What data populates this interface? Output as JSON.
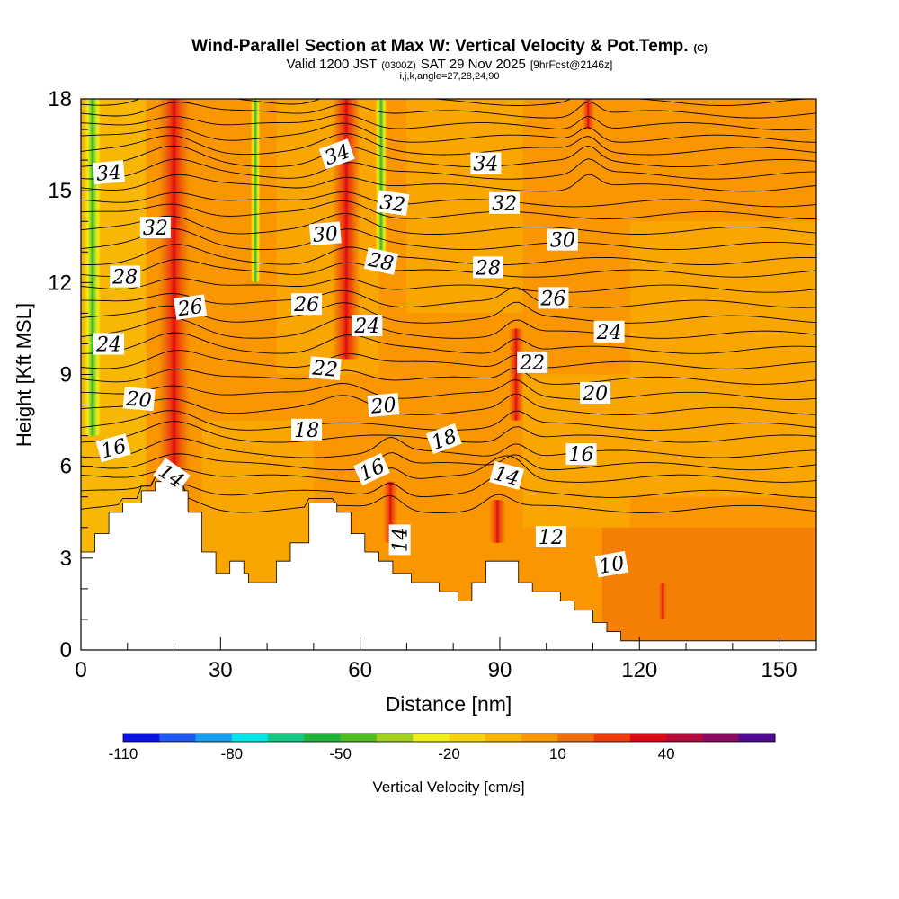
{
  "header": {
    "title": "Wind-Parallel Section at Max W: Vertical Velocity & Pot.Temp.",
    "copyright": "(C)",
    "valid_prefix": "Valid 1200 JST",
    "valid_utc": "(0300Z)",
    "valid_date": "SAT 29 Nov 2025",
    "forecast": "[9hrFcst@2146z]",
    "grid_info": "i,j,k,angle=27,28,24,90"
  },
  "chart_data": {
    "type": "heatmap",
    "title": "Wind-Parallel Section at Max W: Vertical Velocity & Pot.Temp.",
    "xlabel": "Distance [nm]",
    "ylabel": "Height [Kft MSL]",
    "xlim": [
      0,
      158
    ],
    "ylim": [
      0,
      18
    ],
    "x_ticks": [
      0,
      30,
      60,
      90,
      120,
      150
    ],
    "y_ticks": [
      0,
      3,
      6,
      9,
      12,
      15,
      18
    ],
    "x_tick_labels": [
      "0",
      "30",
      "60",
      "90",
      "120",
      "150"
    ],
    "y_tick_labels": [
      "0",
      "3",
      "6",
      "9",
      "12",
      "15",
      "18"
    ],
    "colorbar": {
      "label": "Vertical Velocity [cm/s]",
      "min": -110,
      "step": 10,
      "colors": [
        "#0a14e6",
        "#1e5af0",
        "#14a0f0",
        "#00e6e6",
        "#14c882",
        "#1eb43c",
        "#50be1e",
        "#a0d21e",
        "#f0f014",
        "#f5d20a",
        "#fab400",
        "#fa9600",
        "#f06e0a",
        "#f03c0a",
        "#dc0a14",
        "#b40a3c",
        "#8c0a64",
        "#500a96"
      ],
      "tick_labels": [
        "-110",
        "-80",
        "-50",
        "-20",
        "10",
        "40"
      ],
      "tick_values": [
        -110,
        -80,
        -50,
        -20,
        10,
        40
      ]
    },
    "terrain_kft": [
      [
        0,
        3.2
      ],
      [
        3,
        3.2
      ],
      [
        3,
        3.8
      ],
      [
        6,
        3.8
      ],
      [
        6,
        4.5
      ],
      [
        9,
        4.5
      ],
      [
        9,
        4.8
      ],
      [
        13,
        4.8
      ],
      [
        13,
        5.2
      ],
      [
        16,
        5.2
      ],
      [
        16,
        5.5
      ],
      [
        22,
        5.5
      ],
      [
        22,
        5.2
      ],
      [
        23,
        5.2
      ],
      [
        23,
        4.5
      ],
      [
        26,
        4.5
      ],
      [
        26,
        3.2
      ],
      [
        29,
        3.2
      ],
      [
        29,
        2.5
      ],
      [
        32,
        2.5
      ],
      [
        32,
        2.9
      ],
      [
        35,
        2.9
      ],
      [
        35,
        2.5
      ],
      [
        36,
        2.5
      ],
      [
        36,
        2.2
      ],
      [
        42,
        2.2
      ],
      [
        42,
        2.9
      ],
      [
        45,
        2.9
      ],
      [
        45,
        3.5
      ],
      [
        49,
        3.5
      ],
      [
        49,
        4.8
      ],
      [
        55,
        4.8
      ],
      [
        55,
        4.5
      ],
      [
        58,
        4.5
      ],
      [
        58,
        3.8
      ],
      [
        61,
        3.8
      ],
      [
        61,
        3.2
      ],
      [
        64,
        3.2
      ],
      [
        64,
        2.9
      ],
      [
        67,
        2.9
      ],
      [
        67,
        2.5
      ],
      [
        71,
        2.5
      ],
      [
        71,
        2.2
      ],
      [
        77,
        2.2
      ],
      [
        77,
        1.9
      ],
      [
        81,
        1.9
      ],
      [
        81,
        1.6
      ],
      [
        84,
        1.6
      ],
      [
        84,
        2.2
      ],
      [
        87,
        2.2
      ],
      [
        87,
        2.9
      ],
      [
        94,
        2.9
      ],
      [
        94,
        2.2
      ],
      [
        97,
        2.2
      ],
      [
        97,
        1.9
      ],
      [
        103,
        1.9
      ],
      [
        103,
        1.6
      ],
      [
        106,
        1.6
      ],
      [
        106,
        1.3
      ],
      [
        110,
        1.3
      ],
      [
        110,
        0.9
      ],
      [
        113,
        0.9
      ],
      [
        113,
        0.6
      ],
      [
        116,
        0.6
      ],
      [
        116,
        0.3
      ],
      [
        158,
        0.3
      ]
    ],
    "theta_line_heights_kft": [
      4.6,
      5.1,
      5.6,
      6.0,
      6.4,
      6.9,
      7.3,
      7.8,
      8.3,
      8.8,
      9.3,
      9.8,
      10.3,
      10.8,
      11.3,
      11.8,
      12.3,
      12.7,
      13.2,
      13.7,
      14.2,
      14.6,
      15.1,
      15.5,
      15.9,
      16.3,
      16.7,
      17.1,
      17.5,
      17.9
    ],
    "updrafts": [
      {
        "x": 20,
        "y_bottom": 4.5,
        "y_top": 18,
        "width": 3.4,
        "w": 40
      },
      {
        "x": 57,
        "y_bottom": 9.5,
        "y_top": 18,
        "width": 3.0,
        "w": 35
      },
      {
        "x": 66.5,
        "y_bottom": 3.5,
        "y_top": 5.5,
        "width": 1.6,
        "w": 35
      },
      {
        "x": 89.5,
        "y_bottom": 3.5,
        "y_top": 4.9,
        "width": 1.8,
        "w": 30
      },
      {
        "x": 93.5,
        "y_bottom": 7.5,
        "y_top": 10.5,
        "width": 1.6,
        "w": 25
      },
      {
        "x": 109,
        "y_bottom": 17,
        "y_top": 18,
        "width": 1.4,
        "w": 25
      },
      {
        "x": 125,
        "y_bottom": 1.0,
        "y_top": 2.2,
        "width": 1.0,
        "w": 30
      }
    ],
    "downdrafts": [
      {
        "x": 2.5,
        "y_bottom": 7.0,
        "y_top": 18,
        "width": 1.8,
        "w": -55
      },
      {
        "x": 64.5,
        "y_bottom": 13.0,
        "y_top": 18,
        "width": 1.2,
        "w": -35
      },
      {
        "x": 37.5,
        "y_bottom": 12.0,
        "y_top": 18,
        "width": 1.0,
        "w": -20
      }
    ],
    "theta_labels": [
      {
        "text": "34",
        "x": 6,
        "y": 15.6,
        "angle": -5
      },
      {
        "text": "32",
        "x": 16,
        "y": 13.8,
        "angle": 0
      },
      {
        "text": "28",
        "x": 9.5,
        "y": 12.2,
        "angle": 0
      },
      {
        "text": "24",
        "x": 6,
        "y": 10.0,
        "angle": 0
      },
      {
        "text": "20",
        "x": 12.5,
        "y": 8.2,
        "angle": 5
      },
      {
        "text": "16",
        "x": 7,
        "y": 6.6,
        "angle": -15
      },
      {
        "text": "14",
        "x": 19.5,
        "y": 5.7,
        "angle": 35
      },
      {
        "text": "26",
        "x": 23.5,
        "y": 11.2,
        "angle": -8
      },
      {
        "text": "34",
        "x": 55,
        "y": 16.2,
        "angle": -20
      },
      {
        "text": "30",
        "x": 52.5,
        "y": 13.6,
        "angle": -5
      },
      {
        "text": "26",
        "x": 48.5,
        "y": 11.3,
        "angle": 0
      },
      {
        "text": "22",
        "x": 52.5,
        "y": 9.2,
        "angle": 5
      },
      {
        "text": "18",
        "x": 48.5,
        "y": 7.2,
        "angle": 0
      },
      {
        "text": "32",
        "x": 67,
        "y": 14.6,
        "angle": 8
      },
      {
        "text": "28",
        "x": 64.5,
        "y": 12.7,
        "angle": 12
      },
      {
        "text": "24",
        "x": 61.5,
        "y": 10.6,
        "angle": 0
      },
      {
        "text": "20",
        "x": 65,
        "y": 8.0,
        "angle": -5
      },
      {
        "text": "16",
        "x": 62.5,
        "y": 5.9,
        "angle": -25
      },
      {
        "text": "14",
        "x": 68.5,
        "y": 3.6,
        "angle": -90
      },
      {
        "text": "18",
        "x": 78,
        "y": 6.9,
        "angle": -20
      },
      {
        "text": "34",
        "x": 87,
        "y": 15.9,
        "angle": 0
      },
      {
        "text": "32",
        "x": 91,
        "y": 14.6,
        "angle": 0
      },
      {
        "text": "28",
        "x": 87.5,
        "y": 12.5,
        "angle": 0
      },
      {
        "text": "14",
        "x": 91.5,
        "y": 5.7,
        "angle": 15
      },
      {
        "text": "22",
        "x": 97,
        "y": 9.4,
        "angle": 0
      },
      {
        "text": "26",
        "x": 101.5,
        "y": 11.5,
        "angle": 0
      },
      {
        "text": "30",
        "x": 103.5,
        "y": 13.4,
        "angle": 0
      },
      {
        "text": "16",
        "x": 107.5,
        "y": 6.4,
        "angle": 0
      },
      {
        "text": "20",
        "x": 110.5,
        "y": 8.4,
        "angle": 0
      },
      {
        "text": "24",
        "x": 113.5,
        "y": 10.4,
        "angle": 0
      },
      {
        "text": "12",
        "x": 101,
        "y": 3.7,
        "angle": 0
      },
      {
        "text": "10",
        "x": 114,
        "y": 2.8,
        "angle": -10
      }
    ]
  }
}
